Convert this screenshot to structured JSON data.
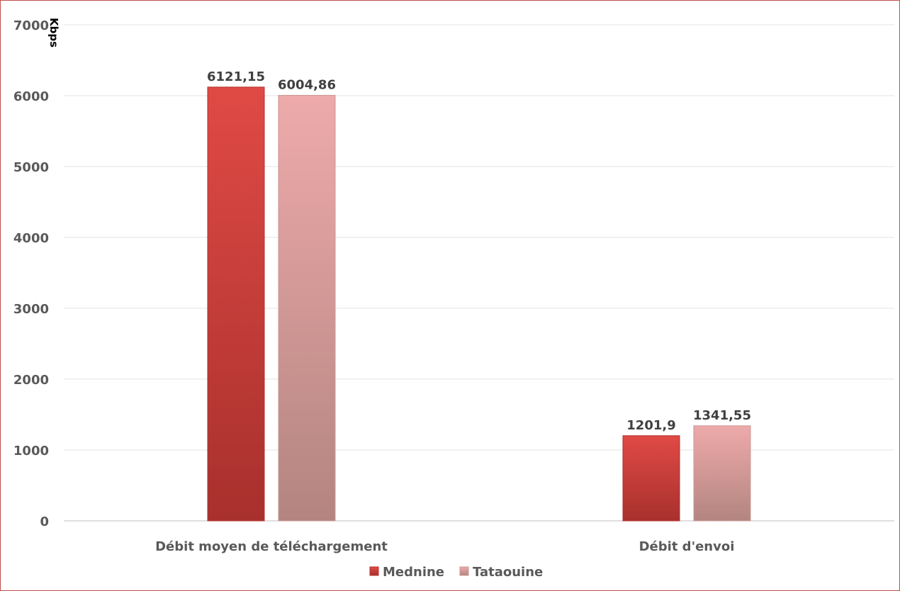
{
  "chart_data": {
    "type": "bar",
    "title": "",
    "xlabel": "",
    "ylabel": "Kbps",
    "ylim": [
      0,
      7000
    ],
    "yticks": [
      0,
      1000,
      2000,
      3000,
      4000,
      5000,
      6000,
      7000
    ],
    "grid": true,
    "legend_position": "bottom",
    "categories": [
      "Débit moyen de téléchargement",
      "Débit d'envoi"
    ],
    "series": [
      {
        "name": "Mednine",
        "values": [
          6121.15,
          1201.9
        ],
        "labels": [
          "6121,15",
          "1201,9"
        ],
        "color": "#d9403a"
      },
      {
        "name": "Tataouine",
        "values": [
          6004.86,
          1341.55
        ],
        "labels": [
          "6004,86",
          "1341,55"
        ],
        "color": "#e3a1a1"
      }
    ]
  }
}
